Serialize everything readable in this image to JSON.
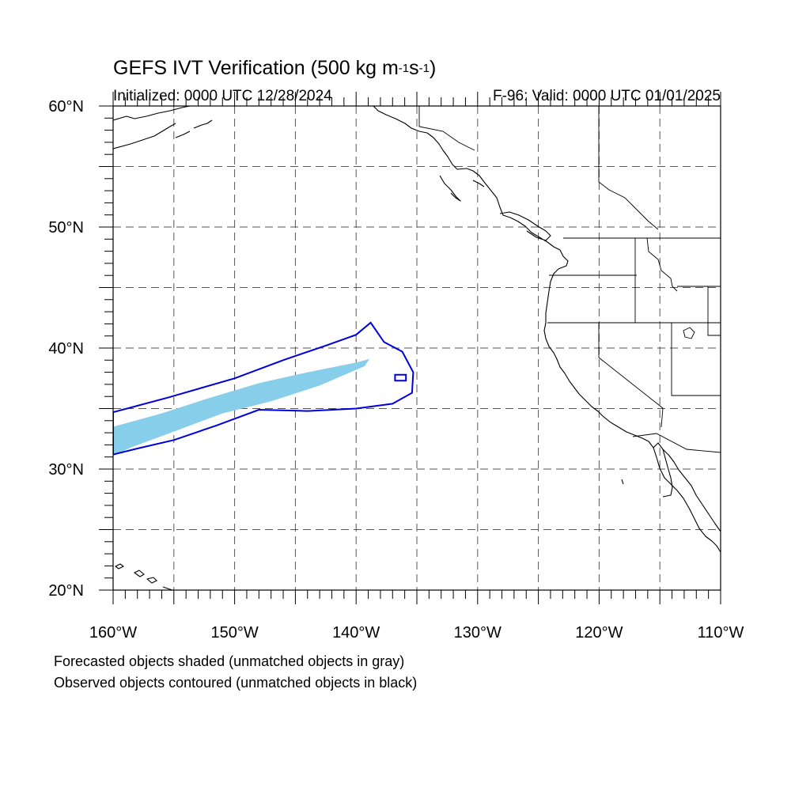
{
  "title": {
    "main": "GEFS IVT Verification (500 kg m",
    "unit_exp1": "-1",
    "unit_mid": "s",
    "unit_exp2": "-1",
    "unit_close": ")"
  },
  "initialized": "Initialized: 0000 UTC 12/28/2024",
  "valid": "F-96: Valid: 0000 UTC 01/01/2025",
  "footnotes": {
    "forecast": "Forecasted objects shaded (unmatched objects in gray)",
    "observed": "Observed objects contoured (unmatched objects in black)"
  },
  "axes": {
    "lon_labels": [
      "160°W",
      "150°W",
      "140°W",
      "130°W",
      "120°W",
      "110°W"
    ],
    "lat_labels": [
      "20°N",
      "30°N",
      "40°N",
      "50°N",
      "60°N"
    ],
    "lon_range": [
      -160,
      -110
    ],
    "lat_range": [
      20,
      60
    ]
  },
  "colors": {
    "forecast_fill": "#87ceeb",
    "observed_contour": "#0000dd",
    "grid": "#555555"
  },
  "objects": {
    "forecast_shading": [
      [
        -160,
        33.5
      ],
      [
        -156,
        34.6
      ],
      [
        -152,
        35.9
      ],
      [
        -148,
        37.1
      ],
      [
        -144,
        38.0
      ],
      [
        -140,
        38.8
      ],
      [
        -138.9,
        39.1
      ],
      [
        -139.3,
        38.5
      ],
      [
        -143,
        36.9
      ],
      [
        -147,
        35.6
      ],
      [
        -151,
        34.6
      ],
      [
        -155,
        33.1
      ],
      [
        -158.5,
        31.8
      ],
      [
        -160,
        31.1
      ]
    ],
    "observed_contour": [
      [
        -160,
        34.7
      ],
      [
        -155.5,
        35.9
      ],
      [
        -150,
        37.5
      ],
      [
        -146,
        39.0
      ],
      [
        -142.5,
        40.2
      ],
      [
        -140,
        41.1
      ],
      [
        -138.8,
        42.1
      ],
      [
        -137.7,
        40.5
      ],
      [
        -136.2,
        39.7
      ],
      [
        -135.3,
        38.0
      ],
      [
        -135.4,
        36.3
      ],
      [
        -137.0,
        35.4
      ],
      [
        -140.0,
        35.0
      ],
      [
        -144.0,
        34.8
      ],
      [
        -148.0,
        34.9
      ],
      [
        -151.5,
        33.6
      ],
      [
        -155.0,
        32.4
      ],
      [
        -158.0,
        31.7
      ],
      [
        -160,
        31.2
      ]
    ],
    "observed_small_contour": [
      [
        -136.8,
        37.8
      ],
      [
        -135.9,
        37.8
      ],
      [
        -135.9,
        37.3
      ],
      [
        -136.8,
        37.3
      ]
    ]
  }
}
